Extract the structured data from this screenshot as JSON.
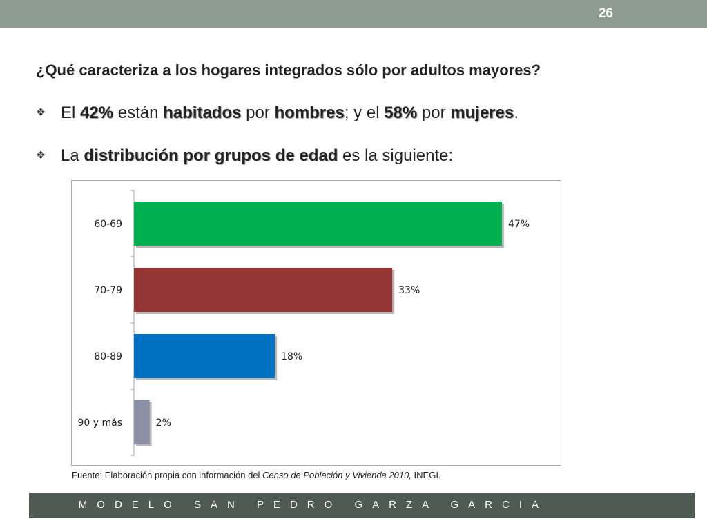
{
  "slide_number": "26",
  "question": "¿Qué caracteriza a los hogares integrados sólo por adultos mayores?",
  "bullet1": {
    "p1": "El ",
    "b1": "42%",
    "p2": " están ",
    "b2": "habitados",
    "p3": " por ",
    "b3": "hombres",
    "p4": "; y el ",
    "b4": "58%",
    "p5": " por ",
    "b5": "mujeres",
    "p6": "."
  },
  "bullet2": {
    "p1": "La ",
    "b1": "distribución por grupos de edad",
    "p2": " es la siguiente:"
  },
  "bullet_icon": "four-petal-diamond-icon",
  "chart_data": {
    "type": "bar",
    "orientation": "horizontal",
    "categories": [
      "60-69",
      "70-79",
      "80-89",
      "90 y más"
    ],
    "values": [
      47,
      33,
      18,
      2
    ],
    "data_labels": [
      "47%",
      "33%",
      "18%",
      "2%"
    ],
    "colors": [
      "#00b050",
      "#943634",
      "#0070c0",
      "#8b8fa5"
    ],
    "xlim": [
      0,
      50
    ],
    "grid": false,
    "legend": "none"
  },
  "source": {
    "prefix": "Fuente: Elaboración propia con información del ",
    "italic": "Censo de Población y Vivienda  2010,",
    "suffix": " INEGI."
  },
  "footer": "MODELO SAN PEDRO GARZA GARCIA"
}
